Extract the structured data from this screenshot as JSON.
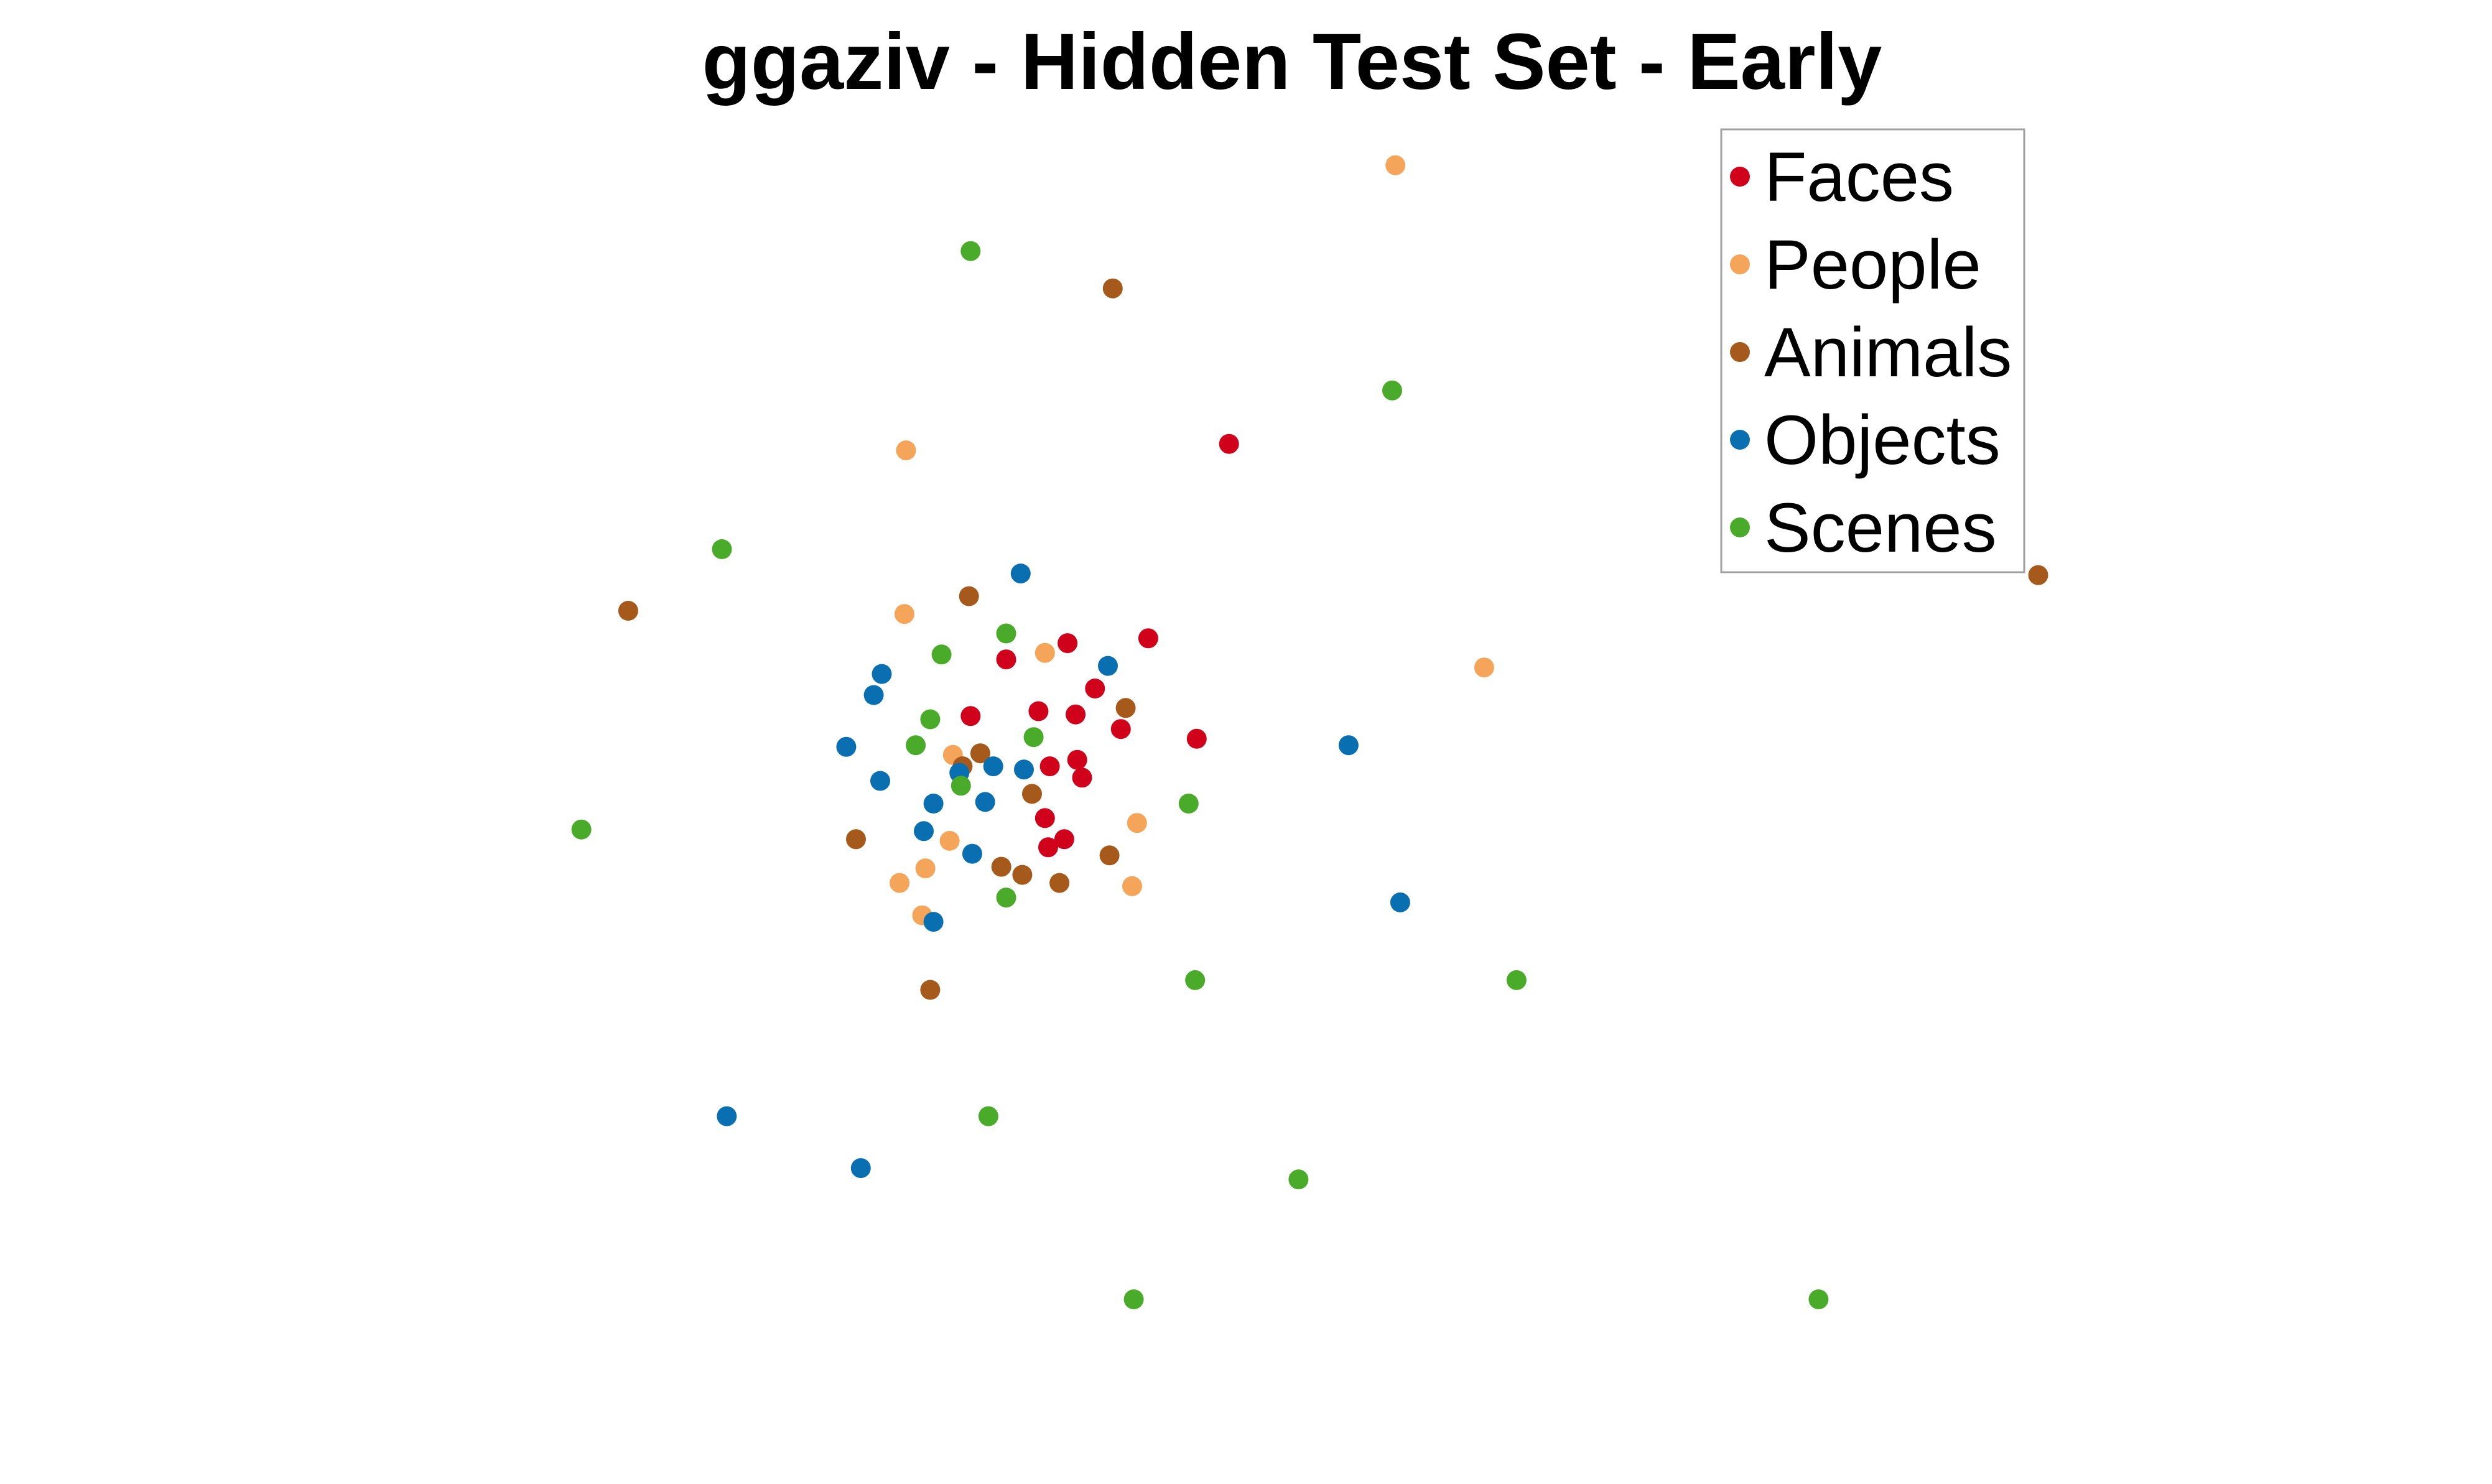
{
  "chart_data": {
    "type": "scatter",
    "title": "ggaziv - Hidden Test Set - Early",
    "xlabel": "",
    "ylabel": "",
    "axes_visible": false,
    "grid": false,
    "legend_position": "top-right",
    "xlim": [
      0,
      1543
    ],
    "ylim": [
      0,
      916
    ],
    "series": [
      {
        "name": "Faces",
        "color": "#d0021b",
        "points": [
          [
            761,
            642
          ],
          [
            711,
            522
          ],
          [
            661,
            519
          ],
          [
            623,
            509
          ],
          [
            678,
            491
          ],
          [
            601,
            474
          ],
          [
            643,
            477
          ],
          [
            666,
            475
          ],
          [
            694,
            466
          ],
          [
            741,
            460
          ],
          [
            667,
            447
          ],
          [
            650,
            443
          ],
          [
            670,
            436
          ],
          [
            647,
            411
          ],
          [
            659,
            398
          ],
          [
            649,
            393
          ]
        ]
      },
      {
        "name": "People",
        "color": "#f5a55a",
        "points": [
          [
            864,
            814
          ],
          [
            561,
            638
          ],
          [
            560,
            537
          ],
          [
            647,
            513
          ],
          [
            919,
            504
          ],
          [
            590,
            450
          ],
          [
            704,
            408
          ],
          [
            588,
            397
          ],
          [
            573,
            380
          ],
          [
            557,
            371
          ],
          [
            701,
            369
          ],
          [
            571,
            351
          ]
        ]
      },
      {
        "name": "Animals",
        "color": "#a5591a",
        "points": [
          [
            689,
            738
          ],
          [
            1262,
            561
          ],
          [
            389,
            539
          ],
          [
            600,
            548
          ],
          [
            697,
            479
          ],
          [
            607,
            451
          ],
          [
            596,
            443
          ],
          [
            639,
            426
          ],
          [
            530,
            398
          ],
          [
            687,
            388
          ],
          [
            620,
            381
          ],
          [
            633,
            376
          ],
          [
            656,
            371
          ],
          [
            576,
            305
          ]
        ]
      },
      {
        "name": "Objects",
        "color": "#0a6fb0",
        "points": [
          [
            632,
            562
          ],
          [
            546,
            500
          ],
          [
            686,
            505
          ],
          [
            541,
            487
          ],
          [
            524,
            455
          ],
          [
            835,
            456
          ],
          [
            615,
            443
          ],
          [
            634,
            441
          ],
          [
            594,
            439
          ],
          [
            545,
            434
          ],
          [
            578,
            420
          ],
          [
            610,
            421
          ],
          [
            572,
            403
          ],
          [
            602,
            389
          ],
          [
            867,
            359
          ],
          [
            578,
            347
          ],
          [
            450,
            227
          ],
          [
            533,
            195
          ]
        ]
      },
      {
        "name": "Scenes",
        "color": "#4aab2a",
        "points": [
          [
            601,
            761
          ],
          [
            862,
            675
          ],
          [
            447,
            577
          ],
          [
            623,
            525
          ],
          [
            583,
            512
          ],
          [
            576,
            472
          ],
          [
            567,
            456
          ],
          [
            640,
            461
          ],
          [
            595,
            431
          ],
          [
            736,
            420
          ],
          [
            360,
            404
          ],
          [
            623,
            362
          ],
          [
            740,
            311
          ],
          [
            939,
            311
          ],
          [
            612,
            227
          ],
          [
            804,
            188
          ],
          [
            702,
            114
          ],
          [
            1126,
            114
          ]
        ]
      }
    ]
  }
}
